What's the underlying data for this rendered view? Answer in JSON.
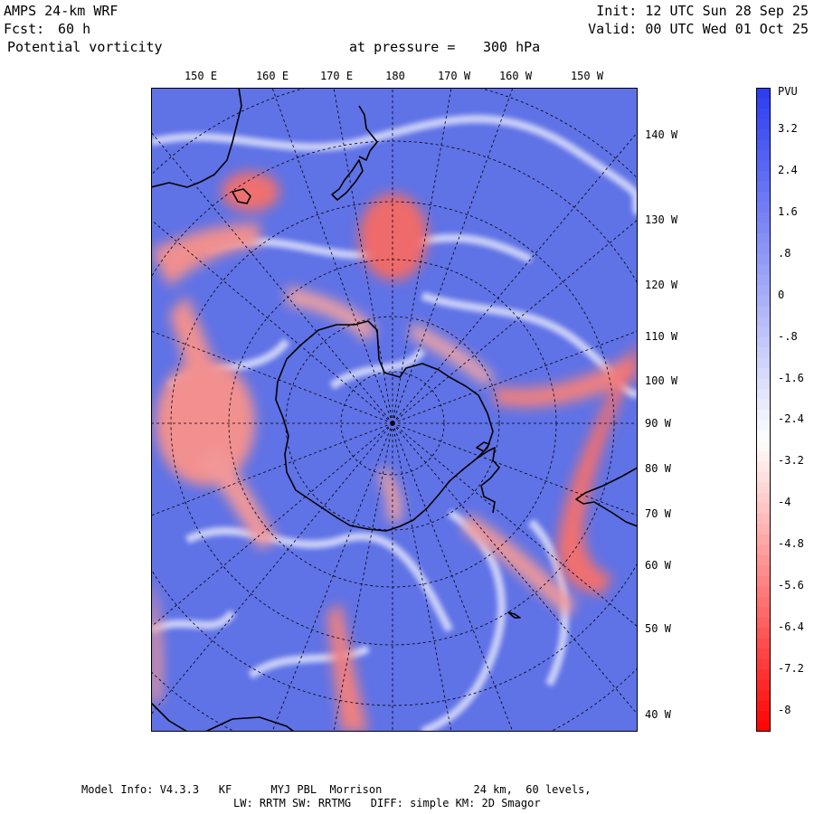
{
  "header": {
    "model": "AMPS 24-km WRF",
    "fcst_label": "Fcst:",
    "fcst_value": "60 h",
    "field": "Potential vorticity",
    "pressure_label": "at pressure =",
    "pressure_value": "300 hPa",
    "init": "Init: 12 UTC Sun 28 Sep 25",
    "valid": "Valid: 00 UTC Wed 01 Oct 25"
  },
  "lon_labels_top": [
    "150 E",
    "160 E",
    "170 E",
    "180",
    "170 W",
    "160 W",
    "150 W"
  ],
  "lon_labels_right": [
    "140 W",
    "130 W",
    "120 W",
    "110 W",
    "100 W",
    "90 W",
    "80 W",
    "70 W",
    "60 W",
    "50 W",
    "40 W"
  ],
  "colorbar": {
    "unit": "PVU",
    "labels": [
      "3.2",
      "2.4",
      "1.6",
      ".8",
      "0",
      "-.8",
      "-1.6",
      "-2.4",
      "-3.2",
      "-4",
      "-4.8",
      "-5.6",
      "-6.4",
      "-7.2",
      "-8"
    ],
    "values": [
      3.2,
      2.4,
      1.6,
      0.8,
      0,
      -0.8,
      -1.6,
      -2.4,
      -3.2,
      -4,
      -4.8,
      -5.6,
      -6.4,
      -7.2,
      -8
    ],
    "range": [
      -8.4,
      4.0
    ]
  },
  "colors": {
    "positive": "#2a3bf0",
    "neutral": "#ffffff",
    "negative": "#ff0000",
    "background_field": "#5f72e6",
    "anomaly": "#f28a8a"
  },
  "footer": {
    "line1": "Model Info: V4.3.3   KF      MYJ PBL  Morrison              24 km,  60 levels,",
    "line2": "LW: RRTM SW: RRTMG   DIFF: simple KM: 2D Smagor"
  }
}
